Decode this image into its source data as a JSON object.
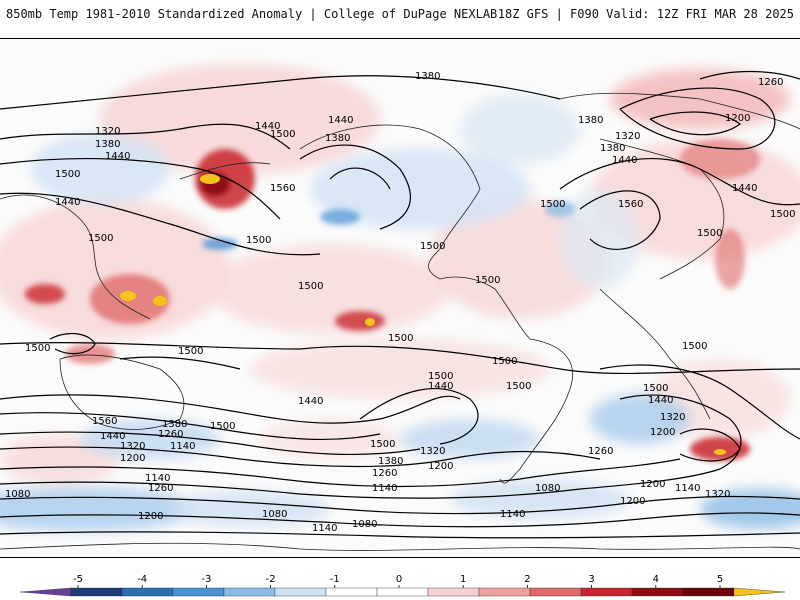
{
  "header": {
    "title": "850mb Temp 1981-2010 Standardized Anomaly | College of DuPage NEXLAB",
    "run_info": "18Z GFS | F090 Valid: 12Z FRI MAR 28 2025"
  },
  "map": {
    "contour_labels": [
      "1380",
      "1320",
      "1380",
      "1440",
      "1500",
      "1440",
      "1500",
      "1440",
      "1380",
      "1500",
      "1560",
      "1440",
      "1500",
      "1500",
      "1500",
      "1500",
      "1500",
      "1560",
      "1500",
      "1320",
      "1380",
      "1440",
      "1380",
      "1260",
      "1200",
      "1440",
      "1500",
      "1500",
      "1500",
      "1500",
      "1500",
      "1500",
      "1500",
      "1500",
      "1440",
      "1560",
      "1440",
      "1320",
      "1200",
      "1380",
      "1260",
      "1140",
      "1500",
      "1440",
      "1500",
      "1320",
      "1380",
      "1260",
      "1140",
      "1200",
      "1500",
      "1440",
      "1320",
      "1200",
      "1260",
      "1140",
      "1260",
      "1200",
      "1080",
      "1080",
      "1140",
      "1080",
      "1140",
      "1200",
      "1320",
      "1080",
      "1200",
      "1140"
    ]
  },
  "colorbar": {
    "ticks": [
      "-5",
      "-4",
      "-3",
      "-2",
      "-1",
      "0",
      "1",
      "2",
      "3",
      "4",
      "5"
    ],
    "colors": [
      "#6a3d9a",
      "#1f3a7a",
      "#2e6fb8",
      "#4a93d6",
      "#8cbbe6",
      "#cfe0f2",
      "#ffffff",
      "#ffffff",
      "#f7d0d0",
      "#ee9f9f",
      "#e06a6a",
      "#c8262c",
      "#8e0b12",
      "#6a0009",
      "#f5c21a"
    ]
  }
}
